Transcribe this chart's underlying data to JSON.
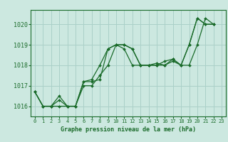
{
  "background_color": "#cce8e0",
  "grid_color": "#aad0c8",
  "line_color": "#1a6b2a",
  "marker_color": "#1a6b2a",
  "title": "Graphe pression niveau de la mer (hPa)",
  "xlim": [
    -0.5,
    23.5
  ],
  "ylim": [
    1015.5,
    1020.7
  ],
  "yticks": [
    1016,
    1017,
    1018,
    1019,
    1020
  ],
  "xticks": [
    0,
    1,
    2,
    3,
    4,
    5,
    6,
    7,
    8,
    9,
    10,
    11,
    12,
    13,
    14,
    15,
    16,
    17,
    18,
    19,
    20,
    21,
    22,
    23
  ],
  "series": [
    [
      1016.7,
      1016.0,
      1016.0,
      1016.3,
      1016.0,
      1016.0,
      1017.2,
      1017.2,
      1017.3,
      1018.8,
      1019.0,
      1019.0,
      1018.8,
      1018.0,
      1018.0,
      1018.0,
      1018.0,
      1018.2,
      1018.0,
      1019.0,
      1020.3,
      1020.0,
      1020.0,
      null
    ],
    [
      1016.7,
      1016.0,
      1016.0,
      1016.0,
      1016.0,
      1016.0,
      1017.0,
      1017.0,
      1017.5,
      1018.0,
      1019.0,
      1018.8,
      1018.0,
      1018.0,
      1018.0,
      1018.1,
      1018.0,
      1018.3,
      1018.0,
      1018.0,
      1019.0,
      1020.3,
      1020.0,
      null
    ],
    [
      1016.7,
      1016.0,
      1016.0,
      1016.5,
      1016.0,
      1016.0,
      1017.2,
      1017.3,
      1018.0,
      1018.8,
      1019.0,
      1019.0,
      1018.8,
      1018.0,
      1018.0,
      1018.0,
      1018.2,
      1018.3,
      1018.0,
      1019.0,
      1020.3,
      1020.0,
      1020.0,
      null
    ]
  ]
}
